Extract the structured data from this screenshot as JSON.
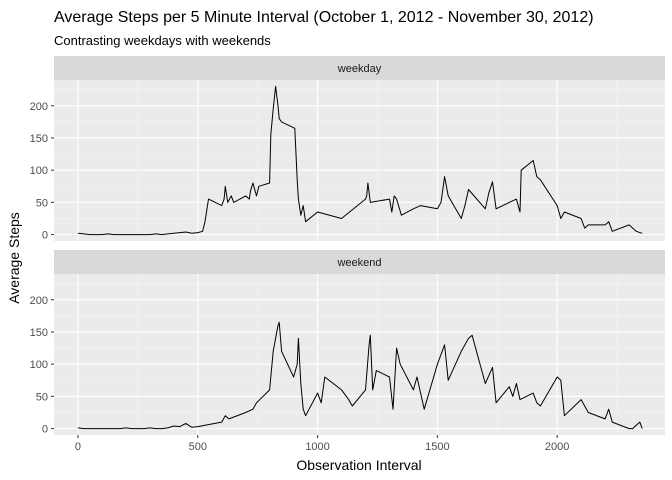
{
  "chart_data": {
    "type": "line",
    "title": "Average Steps per 5 Minute Interval (October 1, 2012 - November 30, 2012)",
    "subtitle": "Contrasting weekdays with weekends",
    "xlabel": "Observation Interval",
    "ylabel": "Average Steps",
    "xlim": [
      -100,
      2450
    ],
    "ylim": [
      -10,
      240
    ],
    "x_ticks": [
      0,
      500,
      1000,
      1500,
      2000
    ],
    "y_ticks": [
      0,
      50,
      100,
      150,
      200
    ],
    "grid": true,
    "line_color": "#000000",
    "panel_bg": "#ebebeb",
    "strip_bg": "#d9d9d9",
    "facets": [
      {
        "name": "weekday",
        "x": [
          0,
          25,
          50,
          75,
          100,
          125,
          150,
          175,
          200,
          225,
          250,
          275,
          300,
          325,
          350,
          375,
          400,
          425,
          450,
          475,
          500,
          520,
          530,
          545,
          600,
          610,
          615,
          625,
          640,
          650,
          700,
          715,
          720,
          730,
          745,
          755,
          800,
          805,
          815,
          825,
          835,
          840,
          850,
          905,
          915,
          920,
          930,
          940,
          950,
          1000,
          1100,
          1200,
          1205,
          1210,
          1220,
          1300,
          1310,
          1320,
          1330,
          1350,
          1400,
          1430,
          1500,
          1515,
          1530,
          1545,
          1600,
          1615,
          1630,
          1700,
          1715,
          1730,
          1745,
          1800,
          1830,
          1845,
          1850,
          1900,
          1915,
          1930,
          2000,
          2015,
          2030,
          2100,
          2115,
          2130,
          2200,
          2215,
          2230,
          2300,
          2330,
          2355
        ],
        "y": [
          2,
          1,
          0,
          0,
          0,
          1,
          0,
          0,
          0,
          0,
          0,
          0,
          0,
          1,
          0,
          1,
          2,
          3,
          4,
          2,
          3,
          5,
          20,
          55,
          45,
          55,
          75,
          50,
          60,
          50,
          60,
          55,
          68,
          80,
          60,
          75,
          80,
          155,
          195,
          230,
          200,
          180,
          175,
          165,
          85,
          55,
          30,
          45,
          20,
          35,
          25,
          55,
          60,
          80,
          50,
          55,
          35,
          60,
          55,
          30,
          40,
          45,
          40,
          50,
          90,
          60,
          25,
          45,
          70,
          40,
          65,
          82,
          40,
          50,
          55,
          35,
          100,
          115,
          90,
          85,
          45,
          25,
          35,
          25,
          10,
          15,
          15,
          20,
          5,
          15,
          5,
          2
        ]
      },
      {
        "name": "weekend",
        "x": [
          0,
          25,
          50,
          75,
          100,
          125,
          150,
          175,
          200,
          225,
          250,
          275,
          300,
          325,
          350,
          375,
          400,
          425,
          450,
          475,
          500,
          530,
          600,
          615,
          630,
          700,
          730,
          745,
          800,
          815,
          835,
          840,
          850,
          900,
          915,
          920,
          930,
          940,
          950,
          1000,
          1015,
          1030,
          1100,
          1130,
          1145,
          1200,
          1215,
          1220,
          1230,
          1245,
          1300,
          1315,
          1330,
          1345,
          1400,
          1415,
          1445,
          1500,
          1530,
          1545,
          1600,
          1630,
          1645,
          1700,
          1730,
          1745,
          1800,
          1815,
          1830,
          1845,
          1900,
          1915,
          1930,
          2000,
          2015,
          2030,
          2100,
          2130,
          2200,
          2215,
          2230,
          2300,
          2315,
          2330,
          2345,
          2355
        ],
        "y": [
          1,
          0,
          0,
          0,
          0,
          0,
          0,
          0,
          1,
          0,
          0,
          0,
          1,
          0,
          0,
          1,
          4,
          3,
          8,
          2,
          3,
          5,
          10,
          20,
          15,
          25,
          30,
          40,
          60,
          120,
          160,
          165,
          120,
          80,
          100,
          140,
          70,
          30,
          20,
          55,
          40,
          80,
          60,
          45,
          35,
          60,
          130,
          145,
          60,
          90,
          80,
          30,
          125,
          100,
          60,
          80,
          30,
          100,
          130,
          75,
          120,
          140,
          145,
          70,
          95,
          40,
          65,
          50,
          70,
          45,
          55,
          40,
          35,
          80,
          75,
          20,
          45,
          25,
          15,
          30,
          10,
          0,
          0,
          5,
          10,
          0
        ]
      }
    ]
  }
}
